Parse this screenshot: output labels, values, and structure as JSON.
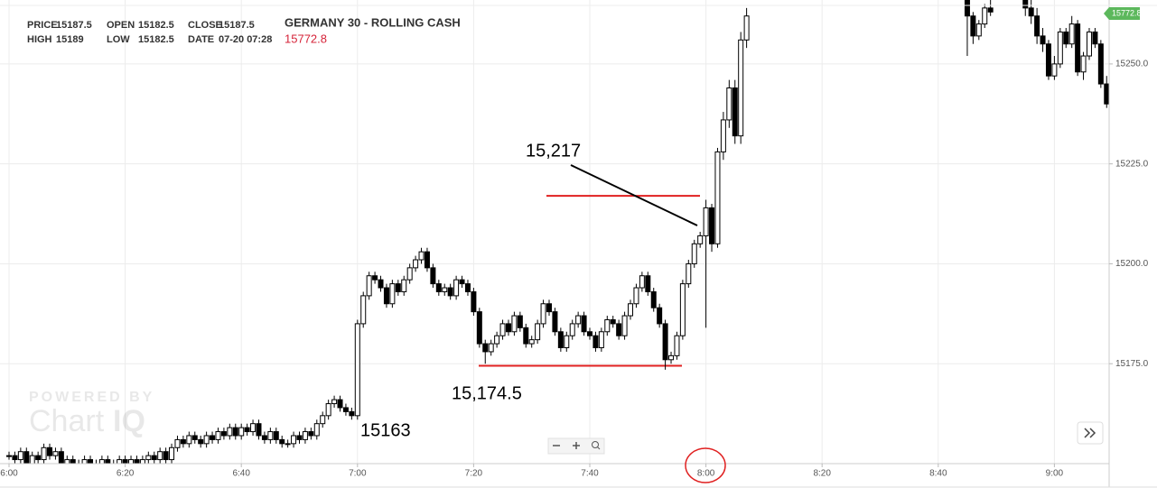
{
  "chart_data": {
    "type": "candlestick",
    "title": "GERMANY 30 - ROLLING CASH",
    "last_price": "15772.8",
    "quote": [
      {
        "label": "PRICE",
        "value": 15187.5
      },
      {
        "label": "HIGH",
        "value": 15189
      },
      {
        "label": "OPEN",
        "value": 15182.5
      },
      {
        "label": "LOW",
        "value": 15182.5
      },
      {
        "label": "CLOSE",
        "value": 15187.5
      },
      {
        "label": "DATE",
        "value": "07-20 07:28"
      }
    ],
    "annotations": [
      "15,217",
      "15,174.5",
      "15163"
    ],
    "hlines": [
      {
        "value": 15217,
        "color": "#e02020"
      },
      {
        "value": 15174.5,
        "color": "#e02020"
      }
    ],
    "watermark": [
      "POWERED BY",
      "Chart",
      "IQ"
    ],
    "up_color": "#ffffff",
    "down_color": "#000000",
    "grid": true,
    "ylim": [
      15150,
      15266
    ],
    "yticks": [
      {
        "value": 15175,
        "label": "15175.0"
      },
      {
        "value": 15200,
        "label": "15200.0"
      },
      {
        "value": 15225,
        "label": "15225.0"
      },
      {
        "value": 15250,
        "label": "15250.0"
      }
    ],
    "categories": [
      "6:00",
      null,
      null,
      null,
      null,
      null,
      null,
      null,
      null,
      null,
      null,
      null,
      null,
      null,
      null,
      null,
      null,
      null,
      null,
      null,
      "6:20",
      null,
      null,
      null,
      null,
      null,
      null,
      null,
      null,
      null,
      null,
      null,
      null,
      null,
      null,
      null,
      null,
      null,
      null,
      null,
      "6:40",
      null,
      null,
      null,
      null,
      null,
      null,
      null,
      null,
      null,
      null,
      null,
      null,
      null,
      null,
      null,
      null,
      null,
      null,
      null,
      "7:00",
      null,
      null,
      null,
      null,
      null,
      null,
      null,
      null,
      null,
      null,
      null,
      null,
      null,
      null,
      null,
      null,
      null,
      null,
      null,
      "7:20",
      null,
      null,
      null,
      null,
      null,
      null,
      null,
      null,
      null,
      null,
      null,
      null,
      null,
      null,
      null,
      null,
      null,
      null,
      null,
      "7:40",
      null,
      null,
      null,
      null,
      null,
      null,
      null,
      null,
      null,
      null,
      null,
      null,
      null,
      null,
      null,
      null,
      null,
      null,
      null,
      "8:00",
      null,
      null,
      null,
      null,
      null,
      null,
      null,
      null,
      null,
      null,
      null,
      null,
      null,
      null,
      null,
      null,
      null,
      null,
      null,
      "8:20",
      null,
      null,
      null,
      null,
      null,
      null,
      null,
      null,
      null,
      null,
      null,
      null,
      null,
      null,
      null,
      null,
      null,
      null,
      null,
      "8:40",
      null,
      null,
      null,
      null,
      null,
      null,
      null,
      null,
      null,
      null,
      null,
      null,
      null,
      null,
      null,
      null,
      null,
      null,
      null,
      "9:00",
      null,
      null,
      null,
      null,
      null,
      null,
      null,
      null,
      null
    ],
    "open": [
      15152,
      15152,
      15151,
      15153,
      15150,
      15152,
      15151,
      15154,
      15152,
      15153,
      15150,
      15151,
      15150,
      15150,
      15151,
      15150,
      15150,
      15151,
      15150,
      15150,
      15151,
      15150,
      15151,
      15150,
      15151,
      15152,
      15151,
      15153,
      15151,
      15154,
      15156,
      15155,
      15157,
      15156,
      15155,
      15157,
      15156,
      15158,
      15157,
      15159,
      15157,
      15159,
      15158,
      15160,
      15157,
      15156,
      15158,
      15156,
      15155,
      15155,
      15157,
      15156,
      15158,
      15157,
      15160,
      15162,
      15165,
      15166,
      15164,
      15163,
      15162,
      15185,
      15192,
      15197,
      15196,
      15194,
      15190,
      15195,
      15193,
      15196,
      15199,
      15201,
      15203,
      15199,
      15195,
      15193,
      15194,
      15192,
      15196,
      15195,
      15193,
      15188,
      15180,
      15178,
      15180,
      15182,
      15185,
      15183,
      15187,
      15184,
      15180,
      15181,
      15185,
      15190,
      15188,
      15183,
      15179,
      15182,
      15185,
      15187,
      15183,
      15182,
      15179,
      15183,
      15186,
      15185,
      15182,
      15187,
      15190,
      15194,
      15197,
      15193,
      15189,
      15185,
      15176,
      15177,
      15182,
      15195,
      15200,
      15205,
      15207,
      15214,
      15205,
      15228,
      15236,
      15244,
      15232,
      15256,
      null,
      null,
      null,
      null,
      null,
      null,
      null,
      null,
      null,
      null,
      null,
      null,
      null,
      null,
      null,
      null,
      null,
      null,
      null,
      null,
      null,
      null,
      null,
      null,
      null,
      null,
      null,
      null,
      null,
      null,
      null,
      null,
      null,
      null,
      null,
      null,
      null,
      15266,
      15262,
      15257,
      15260,
      15264,
      null,
      null,
      null,
      null,
      null,
      15266,
      15264,
      15262,
      15257,
      15255,
      15247,
      15250,
      15258,
      15255,
      15260,
      15248,
      15252,
      15258,
      15255,
      15245
    ],
    "high": [
      15153,
      15153,
      15154,
      15154,
      15153,
      15153,
      15155,
      15155,
      15154,
      15154,
      15152,
      15152,
      15151,
      15152,
      15152,
      15151,
      15152,
      15152,
      15151,
      15152,
      15152,
      15152,
      15152,
      15152,
      15153,
      15153,
      15154,
      15154,
      15155,
      15157,
      15157,
      15158,
      15158,
      15157,
      15158,
      15158,
      15159,
      15159,
      15160,
      15160,
      15160,
      15160,
      15161,
      15161,
      15158,
      15159,
      15159,
      15157,
      15156,
      15158,
      15158,
      15159,
      15159,
      15161,
      15163,
      15166,
      15167,
      15167,
      15165,
      15164,
      15186,
      15193,
      15198,
      15198,
      15197,
      15195,
      15196,
      15196,
      15197,
      15200,
      15202,
      15204,
      15204,
      15200,
      15196,
      15195,
      15195,
      15197,
      15197,
      15196,
      15194,
      15189,
      15181,
      15181,
      15183,
      15186,
      15186,
      15188,
      15188,
      15185,
      15182,
      15186,
      15191,
      15191,
      15189,
      15184,
      15183,
      15186,
      15188,
      15188,
      15184,
      15183,
      15184,
      15187,
      15187,
      15186,
      15188,
      15191,
      15195,
      15198,
      15198,
      15194,
      15190,
      15186,
      15178,
      15183,
      15196,
      15201,
      15206,
      15208,
      15216,
      15215,
      15229,
      15238,
      15246,
      15246,
      15258,
      15264,
      null,
      null,
      null,
      null,
      null,
      null,
      null,
      null,
      null,
      null,
      null,
      null,
      null,
      null,
      null,
      null,
      null,
      null,
      null,
      null,
      null,
      null,
      null,
      null,
      null,
      null,
      null,
      null,
      null,
      null,
      null,
      null,
      null,
      null,
      null,
      null,
      null,
      15268,
      15263,
      15261,
      15265,
      15266,
      null,
      null,
      null,
      null,
      null,
      15268,
      15266,
      15264,
      15259,
      15256,
      15252,
      15259,
      15259,
      15262,
      15261,
      15253,
      15259,
      15259,
      15256,
      15247
    ],
    "low": [
      15151,
      15150,
      15150,
      15149,
      15149,
      15150,
      15150,
      15151,
      15151,
      15149,
      15149,
      15149,
      15149,
      15149,
      15149,
      15149,
      15149,
      15149,
      15149,
      15149,
      15149,
      15149,
      15149,
      15149,
      15150,
      15150,
      15150,
      15150,
      15150,
      15153,
      15154,
      15154,
      15155,
      15154,
      15154,
      15155,
      15155,
      15156,
      15156,
      15156,
      15156,
      15157,
      15157,
      15156,
      15155,
      15155,
      15155,
      15154,
      15154,
      15154,
      15155,
      15155,
      15156,
      15156,
      15159,
      15161,
      15164,
      15163,
      15162,
      15161,
      15161,
      15184,
      15191,
      15195,
      15193,
      15189,
      15189,
      15192,
      15192,
      15195,
      15198,
      15200,
      15198,
      15194,
      15192,
      15192,
      15191,
      15191,
      15194,
      15192,
      15187,
      15179,
      15175,
      15177,
      15179,
      15181,
      15182,
      15182,
      15183,
      15179,
      15179,
      15180,
      15184,
      15187,
      15182,
      15178,
      15178,
      15181,
      15184,
      15182,
      15181,
      15178,
      15178,
      15182,
      15184,
      15181,
      15181,
      15186,
      15189,
      15193,
      15192,
      15188,
      15184,
      15173.5,
      15175,
      15176,
      15181,
      15194,
      15199,
      15204,
      15184,
      15203,
      15204,
      15226,
      15234,
      15230,
      15230,
      15254,
      null,
      null,
      null,
      null,
      null,
      null,
      null,
      null,
      null,
      null,
      null,
      null,
      null,
      null,
      null,
      null,
      null,
      null,
      null,
      null,
      null,
      null,
      null,
      null,
      null,
      null,
      null,
      null,
      null,
      null,
      null,
      null,
      null,
      null,
      null,
      null,
      null,
      15252,
      15255,
      15256,
      15259,
      15262,
      null,
      null,
      null,
      null,
      null,
      15262,
      15260,
      15255,
      15253,
      15246,
      15246,
      15249,
      15254,
      15254,
      15247,
      15246,
      15251,
      15254,
      15244,
      15239
    ],
    "close": [
      15152,
      15151,
      15153,
      15150,
      15152,
      15151,
      15154,
      15152,
      15153,
      15150,
      15151,
      15150,
      15150,
      15151,
      15150,
      15150,
      15151,
      15150,
      15150,
      15151,
      15150,
      15151,
      15150,
      15151,
      15152,
      15151,
      15153,
      15151,
      15154,
      15156,
      15155,
      15157,
      15156,
      15155,
      15157,
      15156,
      15158,
      15157,
      15159,
      15157,
      15159,
      15158,
      15160,
      15157,
      15156,
      15158,
      15156,
      15155,
      15155,
      15157,
      15156,
      15158,
      15157,
      15160,
      15162,
      15165,
      15166,
      15164,
      15163,
      15162,
      15185,
      15192,
      15197,
      15196,
      15194,
      15190,
      15195,
      15193,
      15196,
      15199,
      15201,
      15203,
      15199,
      15195,
      15193,
      15194,
      15192,
      15196,
      15195,
      15193,
      15188,
      15180,
      15178,
      15180,
      15182,
      15185,
      15183,
      15187,
      15184,
      15180,
      15181,
      15185,
      15190,
      15188,
      15183,
      15179,
      15182,
      15185,
      15187,
      15183,
      15182,
      15179,
      15183,
      15186,
      15185,
      15182,
      15187,
      15190,
      15194,
      15197,
      15193,
      15189,
      15185,
      15176,
      15177,
      15182,
      15195,
      15200,
      15205,
      15207,
      15214,
      15205,
      15228,
      15236,
      15244,
      15232,
      15256,
      15262,
      null,
      null,
      null,
      null,
      null,
      null,
      null,
      null,
      null,
      null,
      null,
      null,
      null,
      null,
      null,
      null,
      null,
      null,
      null,
      null,
      null,
      null,
      null,
      null,
      null,
      null,
      null,
      null,
      null,
      null,
      null,
      null,
      null,
      null,
      null,
      null,
      null,
      15262,
      15257,
      15260,
      15264,
      15263,
      null,
      null,
      null,
      null,
      null,
      15264,
      15262,
      15257,
      15255,
      15247,
      15250,
      15258,
      15255,
      15260,
      15248,
      15252,
      15258,
      15255,
      15245,
      15240
    ]
  }
}
